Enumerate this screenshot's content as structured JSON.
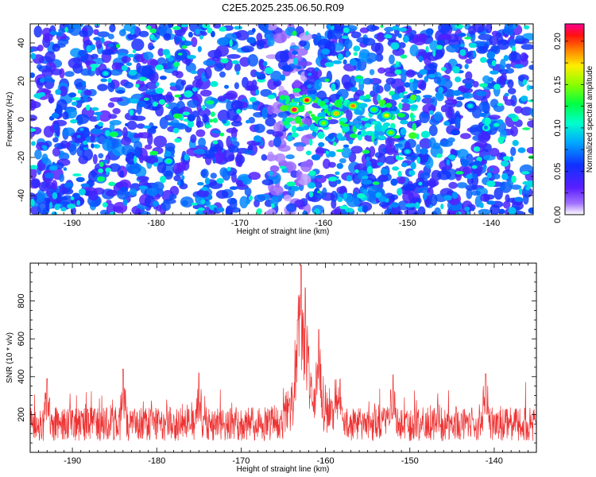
{
  "chart_data": [
    {
      "type": "heatmap",
      "title": "C2E5.2025.235.06.50.R09",
      "xlabel": "Height of straight line (km)",
      "ylabel": "Frequency (Hz)",
      "xlim": [
        -195,
        -135
      ],
      "ylim": [
        -50,
        50
      ],
      "x_ticks": [
        -190,
        -180,
        -170,
        -160,
        -150,
        -140
      ],
      "x_tick_labels": [
        "-190",
        "-180",
        "-170",
        "-160",
        "-150",
        "-140"
      ],
      "y_ticks": [
        -40,
        -20,
        0,
        20,
        40
      ],
      "y_tick_labels": [
        "-40",
        "-20",
        "0",
        "20",
        "40"
      ],
      "colorbar": {
        "label": "Normalized spectral amplitude",
        "range": [
          0,
          0.22
        ],
        "ticks": [
          0,
          0.05,
          0.1,
          0.15,
          0.2
        ],
        "tick_labels": [
          "0.00",
          "0.05",
          "0.10",
          "0.15",
          "0.20"
        ],
        "colormap": [
          "#ffffff",
          "#8a2be2",
          "#3300ff",
          "#0080ff",
          "#00ffff",
          "#00ff66",
          "#80ff00",
          "#ffff00",
          "#ff8000",
          "#ff0000",
          "#ff00a0"
        ]
      },
      "hotspots": [
        {
          "x": -163.5,
          "y": 5,
          "v": 0.22
        },
        {
          "x": -162.0,
          "y": 10,
          "v": 0.21
        },
        {
          "x": -158.5,
          "y": 3,
          "v": 0.18
        },
        {
          "x": -156.5,
          "y": 7,
          "v": 0.19
        },
        {
          "x": -152.5,
          "y": 2,
          "v": 0.17
        },
        {
          "x": -152.0,
          "y": -7,
          "v": 0.15
        },
        {
          "x": -160.0,
          "y": -2,
          "v": 0.15
        },
        {
          "x": -154.0,
          "y": 5,
          "v": 0.14
        },
        {
          "x": -178.5,
          "y": -22,
          "v": 0.12
        },
        {
          "x": -186.0,
          "y": 24,
          "v": 0.1
        },
        {
          "x": -150.0,
          "y": -17,
          "v": 0.1
        },
        {
          "x": -142.5,
          "y": 7,
          "v": 0.1
        }
      ],
      "grid": false
    },
    {
      "type": "line",
      "xlabel": "Height of straight line (km)",
      "ylabel": "SNR (10 * v/v)",
      "xlim": [
        -195,
        -135
      ],
      "ylim": [
        0,
        1000
      ],
      "x_ticks": [
        -190,
        -180,
        -170,
        -160,
        -150,
        -140
      ],
      "x_tick_labels": [
        "-190",
        "-180",
        "-170",
        "-160",
        "-150",
        "-140"
      ],
      "y_ticks": [
        200,
        400,
        600,
        800
      ],
      "y_tick_labels": [
        "200",
        "400",
        "600",
        "800"
      ],
      "color": "#ee3333",
      "baseline": 150,
      "noise_band": [
        40,
        300
      ],
      "peaks": [
        {
          "x": -162.9,
          "y": 990
        },
        {
          "x": -162.4,
          "y": 870
        },
        {
          "x": -163.3,
          "y": 700
        },
        {
          "x": -160.8,
          "y": 650
        },
        {
          "x": -162.0,
          "y": 560
        },
        {
          "x": -184.0,
          "y": 440
        },
        {
          "x": -175.0,
          "y": 420
        },
        {
          "x": -141.0,
          "y": 415
        },
        {
          "x": -152.0,
          "y": 410
        },
        {
          "x": -193.0,
          "y": 390
        }
      ],
      "grid": false
    }
  ]
}
